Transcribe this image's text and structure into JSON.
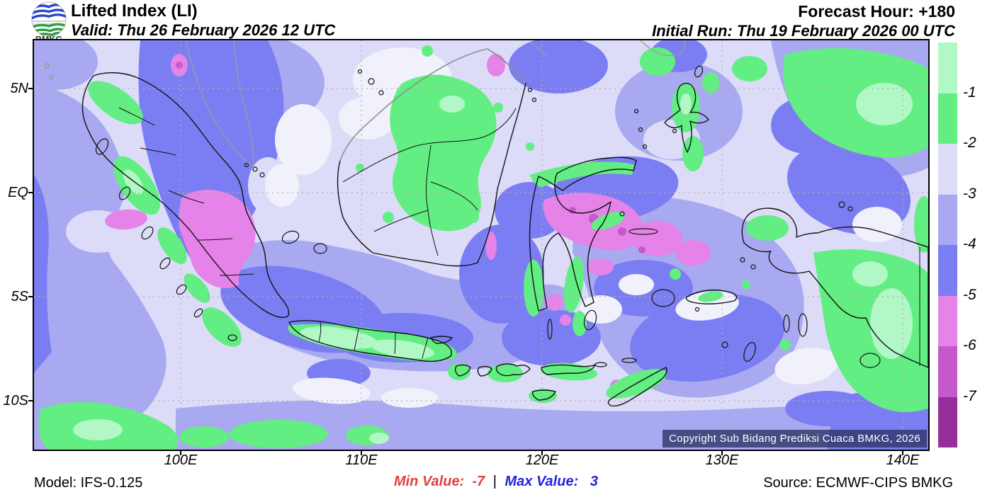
{
  "header": {
    "logo_text": "BMKG",
    "title": "Lifted Index (LI)",
    "valid": "Valid: Thu 26 February 2026 12 UTC",
    "forecast_hour": "Forecast Hour: +180",
    "initial_run": "Initial Run: Thu 19 February 2026 00 UTC"
  },
  "map": {
    "copyright": "Copyright Sub Bidang Prediksi Cuaca BMKG, 2026",
    "y_axis_labels": [
      "5N",
      "EQ",
      "5S",
      "10S"
    ],
    "x_axis_labels": [
      "100E",
      "110E",
      "120E",
      "130E",
      "140E"
    ]
  },
  "colorbar": {
    "tick_labels": [
      "-1",
      "-2",
      "-3",
      "-4",
      "-5",
      "-6",
      "-7"
    ],
    "colors": [
      "#b2f7c6",
      "#62ee82",
      "#dcdcf8",
      "#a8a9f1",
      "#7b7ef3",
      "#e583e8",
      "#c558cb",
      "#962f99"
    ]
  },
  "palette": {
    "pale": "#f1f1fc",
    "llav": "#dcdcf8",
    "peri": "#a8a9f1",
    "blue": "#7b7ef3",
    "pink": "#e583e8",
    "orchid": "#c558cb",
    "purple": "#962f99",
    "green": "#62ee82",
    "lgreen": "#b2f7c6"
  },
  "footer": {
    "model": "Model: IFS-0.125",
    "min_label": "Min Value:",
    "min_value": "-7",
    "separator": "|",
    "max_label": "Max Value:",
    "max_value": "3",
    "source": "Source: ECMWF-CIPS BMKG",
    "min_color": "#e24040",
    "max_color": "#2424dd"
  }
}
